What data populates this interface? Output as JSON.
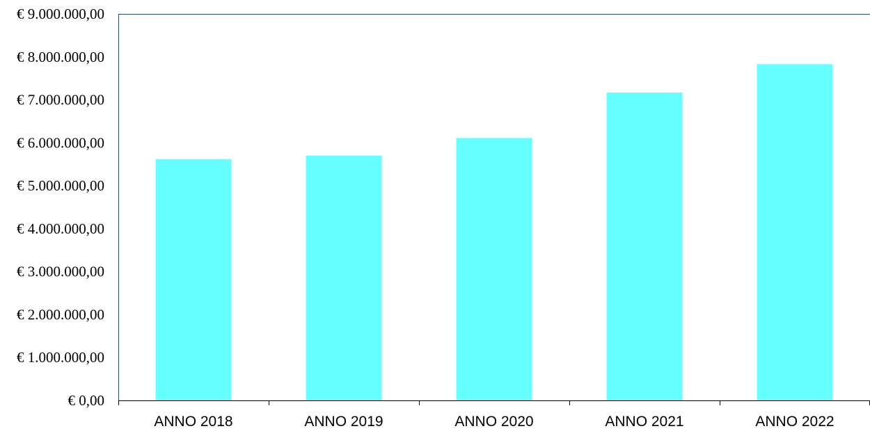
{
  "chart_data": {
    "type": "bar",
    "title": "",
    "xlabel": "",
    "ylabel": "",
    "categories": [
      "ANNO 2018",
      "ANNO 2019",
      "ANNO 2020",
      "ANNO 2021",
      "ANNO 2022"
    ],
    "series": [
      {
        "values": [
          5620000,
          5700000,
          6110000,
          7170000,
          7830000
        ]
      }
    ],
    "ylim": [
      0,
      9000000
    ],
    "yticks": [
      0,
      1000000,
      2000000,
      3000000,
      4000000,
      5000000,
      6000000,
      7000000,
      8000000,
      9000000
    ],
    "ytick_labels": [
      "€ 0,00",
      "€ 1.000.000,00",
      "€ 2.000.000,00",
      "€ 3.000.000,00",
      "€ 4.000.000,00",
      "€ 5.000.000,00",
      "€ 6.000.000,00",
      "€ 7.000.000,00",
      "€ 8.000.000,00",
      "€ 9.000.000,00"
    ],
    "grid": false,
    "legend": "none",
    "colors": {
      "bar": "#66ffff",
      "axis": "#2e4a8a",
      "tick": "#000000"
    }
  }
}
